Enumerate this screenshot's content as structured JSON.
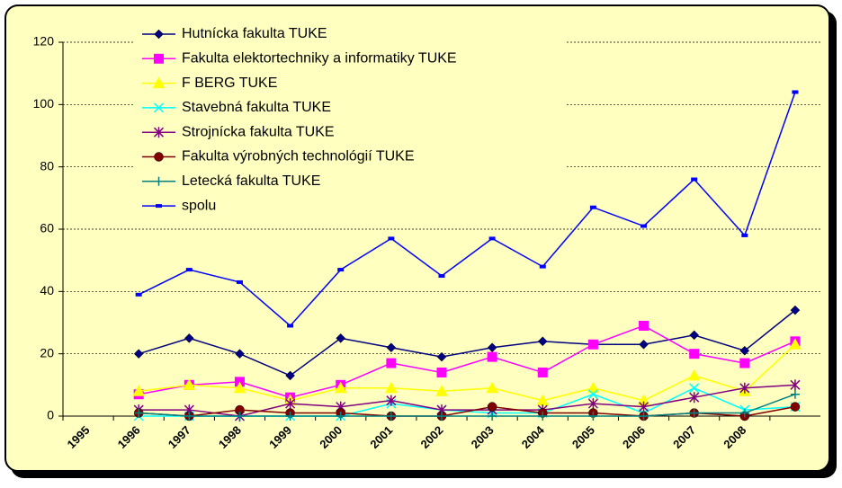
{
  "chart_data": {
    "type": "line",
    "categories": [
      "1995",
      "1996",
      "1997",
      "1998",
      "1999",
      "2000",
      "2001",
      "2002",
      "2003",
      "2004",
      "2005",
      "2006",
      "2007",
      "2008",
      null
    ],
    "series": [
      {
        "name": "Hutnícka fakulta TUKE",
        "color": "#000080",
        "marker": "diamond",
        "values": [
          null,
          20,
          25,
          20,
          13,
          25,
          22,
          19,
          22,
          24,
          23,
          23,
          26,
          21,
          34
        ]
      },
      {
        "name": "Fakulta elektortechniky a informatiky TUKE",
        "color": "#ff00ff",
        "marker": "square",
        "values": [
          null,
          7,
          10,
          11,
          6,
          10,
          17,
          14,
          19,
          14,
          23,
          29,
          20,
          17,
          24
        ]
      },
      {
        "name": "F BERG TUKE",
        "color": "#ffff00",
        "marker": "triangle",
        "values": [
          null,
          8,
          10,
          9,
          5,
          9,
          9,
          8,
          9,
          5,
          9,
          5,
          13,
          8,
          23
        ]
      },
      {
        "name": "Stavebná fakulta TUKE",
        "color": "#00ffff",
        "marker": "x",
        "values": [
          null,
          0,
          0,
          0,
          0,
          0,
          4,
          2,
          1,
          1,
          7,
          1,
          9,
          2,
          3
        ]
      },
      {
        "name": "Strojnícka fakulta TUKE",
        "color": "#800080",
        "marker": "star",
        "values": [
          null,
          2,
          2,
          0,
          4,
          3,
          5,
          2,
          2,
          2,
          4,
          3,
          6,
          9,
          10
        ]
      },
      {
        "name": "Fakulta výrobných technológií TUKE",
        "color": "#800000",
        "marker": "circle",
        "values": [
          null,
          1,
          0,
          2,
          1,
          1,
          0,
          0,
          3,
          1,
          1,
          0,
          1,
          0,
          3
        ]
      },
      {
        "name": "Letecká fakulta TUKE",
        "color": "#008080",
        "marker": "plus",
        "values": [
          null,
          1,
          0,
          0,
          0,
          0,
          0,
          0,
          0,
          0,
          0,
          0,
          1,
          1,
          7
        ]
      },
      {
        "name": "spolu",
        "color": "#0000ff",
        "marker": "dash",
        "values": [
          null,
          39,
          47,
          43,
          29,
          47,
          57,
          45,
          57,
          48,
          67,
          61,
          76,
          58,
          104
        ]
      }
    ],
    "ylim": [
      0,
      120
    ],
    "yticks": [
      0,
      20,
      40,
      60,
      80,
      100,
      120
    ],
    "grid": true,
    "legend": "top-left"
  }
}
